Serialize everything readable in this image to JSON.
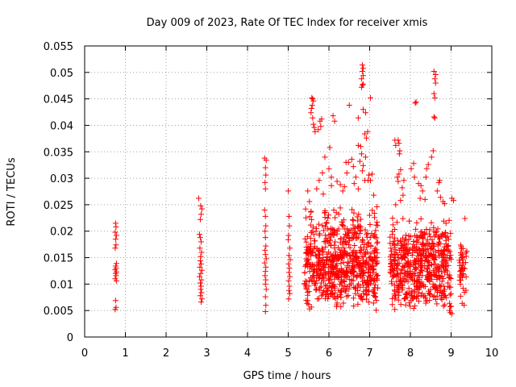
{
  "chart_data": {
    "type": "scatter",
    "title": "Day 009 of 2023, Rate Of TEC Index for receiver xmis",
    "xlabel": "GPS time / hours",
    "ylabel": "ROTI / TECUs",
    "xlim": [
      0,
      10
    ],
    "ylim": [
      0,
      0.055
    ],
    "xticks": [
      "0",
      "1",
      "2",
      "3",
      "4",
      "5",
      "6",
      "7",
      "8",
      "9",
      "10"
    ],
    "yticks": [
      "0",
      "0.005",
      "0.01",
      "0.015",
      "0.02",
      "0.025",
      "0.03",
      "0.035",
      "0.04",
      "0.045",
      "0.05",
      "0.055"
    ],
    "xtick_values": [
      0,
      1,
      2,
      3,
      4,
      5,
      6,
      7,
      8,
      9,
      10
    ],
    "ytick_values": [
      0,
      0.005,
      0.01,
      0.015,
      0.02,
      0.025,
      0.03,
      0.035,
      0.04,
      0.045,
      0.05,
      0.055
    ],
    "grid": true,
    "marker": "+",
    "color": "#ff0000",
    "series": [
      {
        "name": "ROTI",
        "points": [
          [
            0.76,
            0.0215
          ],
          [
            0.77,
            0.0208
          ],
          [
            0.75,
            0.0198
          ],
          [
            0.78,
            0.0192
          ],
          [
            0.76,
            0.0185
          ],
          [
            0.77,
            0.0174
          ],
          [
            0.75,
            0.0168
          ],
          [
            0.78,
            0.0139
          ],
          [
            0.76,
            0.0134
          ],
          [
            0.77,
            0.013
          ],
          [
            0.75,
            0.0127
          ],
          [
            0.78,
            0.0123
          ],
          [
            0.76,
            0.012
          ],
          [
            0.77,
            0.0116
          ],
          [
            0.75,
            0.011
          ],
          [
            0.78,
            0.0106
          ],
          [
            0.76,
            0.0069
          ],
          [
            0.77,
            0.0056
          ],
          [
            0.75,
            0.0052
          ],
          [
            2.8,
            0.0262
          ],
          [
            2.85,
            0.0248
          ],
          [
            2.88,
            0.0242
          ],
          [
            2.86,
            0.0232
          ],
          [
            2.84,
            0.0222
          ],
          [
            2.82,
            0.0194
          ],
          [
            2.84,
            0.0188
          ],
          [
            2.86,
            0.018
          ],
          [
            2.83,
            0.0168
          ],
          [
            2.87,
            0.016
          ],
          [
            2.85,
            0.0152
          ],
          [
            2.84,
            0.0144
          ],
          [
            2.86,
            0.0138
          ],
          [
            2.83,
            0.0132
          ],
          [
            2.88,
            0.0126
          ],
          [
            2.85,
            0.012
          ],
          [
            2.82,
            0.0114
          ],
          [
            2.87,
            0.0108
          ],
          [
            2.84,
            0.0102
          ],
          [
            2.86,
            0.0096
          ],
          [
            2.85,
            0.009
          ],
          [
            2.87,
            0.0084
          ],
          [
            2.84,
            0.0078
          ],
          [
            2.88,
            0.0072
          ],
          [
            2.86,
            0.0066
          ],
          [
            4.42,
            0.0338
          ],
          [
            4.46,
            0.0334
          ],
          [
            4.44,
            0.032
          ],
          [
            4.45,
            0.0306
          ],
          [
            4.43,
            0.0292
          ],
          [
            4.44,
            0.028
          ],
          [
            4.42,
            0.024
          ],
          [
            4.44,
            0.0228
          ],
          [
            4.45,
            0.021
          ],
          [
            4.43,
            0.02
          ],
          [
            4.44,
            0.0188
          ],
          [
            4.45,
            0.0172
          ],
          [
            4.43,
            0.0164
          ],
          [
            4.44,
            0.0156
          ],
          [
            4.46,
            0.0148
          ],
          [
            4.42,
            0.014
          ],
          [
            4.45,
            0.0132
          ],
          [
            4.44,
            0.0124
          ],
          [
            4.43,
            0.0116
          ],
          [
            4.45,
            0.0108
          ],
          [
            4.44,
            0.01
          ],
          [
            4.46,
            0.009
          ],
          [
            4.44,
            0.0076
          ],
          [
            4.45,
            0.006
          ],
          [
            4.44,
            0.0048
          ],
          [
            5.0,
            0.0276
          ],
          [
            5.02,
            0.0228
          ],
          [
            5.03,
            0.021
          ],
          [
            5.01,
            0.0192
          ],
          [
            5.0,
            0.0184
          ],
          [
            5.04,
            0.0168
          ],
          [
            5.02,
            0.0154
          ],
          [
            5.05,
            0.0146
          ],
          [
            5.01,
            0.0138
          ],
          [
            5.03,
            0.013
          ],
          [
            5.02,
            0.0122
          ],
          [
            5.04,
            0.0114
          ],
          [
            5.01,
            0.0106
          ],
          [
            5.03,
            0.0096
          ],
          [
            5.02,
            0.0088
          ],
          [
            5.04,
            0.0082
          ],
          [
            5.01,
            0.0072
          ],
          [
            5.58,
            0.0452
          ],
          [
            5.6,
            0.045
          ],
          [
            5.62,
            0.0446
          ],
          [
            5.59,
            0.0438
          ],
          [
            5.57,
            0.0432
          ],
          [
            5.56,
            0.0424
          ],
          [
            5.6,
            0.0414
          ],
          [
            5.62,
            0.0402
          ],
          [
            5.64,
            0.0396
          ],
          [
            5.66,
            0.0388
          ],
          [
            5.78,
            0.0408
          ],
          [
            5.82,
            0.0412
          ],
          [
            5.8,
            0.0398
          ],
          [
            5.74,
            0.0392
          ],
          [
            6.02,
            0.0358
          ],
          [
            6.1,
            0.0418
          ],
          [
            6.14,
            0.0408
          ],
          [
            5.9,
            0.034
          ],
          [
            6.0,
            0.0318
          ],
          [
            5.84,
            0.031
          ],
          [
            6.06,
            0.0302
          ],
          [
            5.76,
            0.0296
          ],
          [
            5.48,
            0.0276
          ],
          [
            5.52,
            0.0256
          ],
          [
            5.7,
            0.028
          ],
          [
            5.86,
            0.027
          ],
          [
            6.06,
            0.0286
          ],
          [
            6.2,
            0.0294
          ],
          [
            6.28,
            0.0288
          ],
          [
            6.38,
            0.0284
          ],
          [
            6.34,
            0.0276
          ],
          [
            6.42,
            0.033
          ],
          [
            6.44,
            0.031
          ],
          [
            6.48,
            0.033
          ],
          [
            6.56,
            0.0336
          ],
          [
            6.6,
            0.0322
          ],
          [
            6.66,
            0.0302
          ],
          [
            6.62,
            0.029
          ],
          [
            6.72,
            0.028
          ],
          [
            6.78,
            0.036
          ],
          [
            6.72,
            0.0362
          ],
          [
            6.8,
            0.0346
          ],
          [
            6.76,
            0.0332
          ],
          [
            6.84,
            0.0324
          ],
          [
            6.9,
            0.034
          ],
          [
            6.92,
            0.0376
          ],
          [
            6.88,
            0.0384
          ],
          [
            6.95,
            0.0388
          ],
          [
            6.82,
            0.0314
          ],
          [
            6.98,
            0.0306
          ],
          [
            6.96,
            0.0296
          ],
          [
            6.82,
            0.0514
          ],
          [
            6.84,
            0.0508
          ],
          [
            6.82,
            0.0502
          ],
          [
            6.84,
            0.0494
          ],
          [
            6.8,
            0.0488
          ],
          [
            6.84,
            0.0478
          ],
          [
            6.8,
            0.0472
          ],
          [
            6.82,
            0.0476
          ],
          [
            7.02,
            0.0452
          ],
          [
            6.5,
            0.0438
          ],
          [
            6.84,
            0.043
          ],
          [
            6.9,
            0.0424
          ],
          [
            6.72,
            0.0414
          ],
          [
            7.06,
            0.0308
          ],
          [
            7.02,
            0.0296
          ],
          [
            6.88,
            0.0296
          ],
          [
            7.1,
            0.0268
          ],
          [
            7.18,
            0.0246
          ],
          [
            7.62,
            0.0372
          ],
          [
            7.64,
            0.0362
          ],
          [
            7.72,
            0.0366
          ],
          [
            7.74,
            0.0352
          ],
          [
            7.73,
            0.0346
          ],
          [
            7.7,
            0.0372
          ],
          [
            7.76,
            0.0316
          ],
          [
            7.72,
            0.0308
          ],
          [
            7.68,
            0.0302
          ],
          [
            7.84,
            0.0296
          ],
          [
            7.7,
            0.0294
          ],
          [
            7.8,
            0.0282
          ],
          [
            7.82,
            0.0268
          ],
          [
            7.76,
            0.0258
          ],
          [
            7.64,
            0.025
          ],
          [
            8.12,
            0.0442
          ],
          [
            8.14,
            0.0444
          ],
          [
            8.08,
            0.0328
          ],
          [
            8.02,
            0.0318
          ],
          [
            8.1,
            0.0302
          ],
          [
            8.2,
            0.029
          ],
          [
            8.26,
            0.0286
          ],
          [
            8.3,
            0.0276
          ],
          [
            8.36,
            0.026
          ],
          [
            8.24,
            0.0262
          ],
          [
            8.38,
            0.0302
          ],
          [
            8.4,
            0.0318
          ],
          [
            8.44,
            0.0326
          ],
          [
            8.52,
            0.034
          ],
          [
            8.56,
            0.0352
          ],
          [
            8.58,
            0.0416
          ],
          [
            8.6,
            0.0414
          ],
          [
            8.6,
            0.0452
          ],
          [
            8.58,
            0.046
          ],
          [
            8.62,
            0.048
          ],
          [
            8.6,
            0.0488
          ],
          [
            8.58,
            0.0502
          ],
          [
            8.62,
            0.0496
          ],
          [
            8.7,
            0.0292
          ],
          [
            8.72,
            0.0296
          ],
          [
            8.66,
            0.0276
          ],
          [
            8.74,
            0.0264
          ],
          [
            8.8,
            0.0256
          ],
          [
            8.84,
            0.0252
          ],
          [
            9.02,
            0.0262
          ],
          [
            9.06,
            0.0258
          ],
          [
            9.34,
            0.0224
          ],
          [
            9.32,
            0.006
          ],
          [
            9.0,
            0.0058
          ],
          [
            8.98,
            0.0046
          ],
          [
            8.96,
            0.005
          ],
          [
            9.02,
            0.0044
          ]
        ]
      }
    ],
    "dense_clusters": [
      {
        "x_range": [
          5.4,
          7.2
        ],
        "y_range": [
          0.005,
          0.025
        ],
        "count": 700,
        "mode": 0.012,
        "seed": 11
      },
      {
        "x_range": [
          7.5,
          9.0
        ],
        "y_range": [
          0.005,
          0.023
        ],
        "count": 560,
        "mode": 0.0125,
        "seed": 23
      },
      {
        "x_range": [
          9.2,
          9.42
        ],
        "y_range": [
          0.006,
          0.018
        ],
        "count": 45,
        "mode": 0.0125,
        "seed": 37
      }
    ]
  }
}
